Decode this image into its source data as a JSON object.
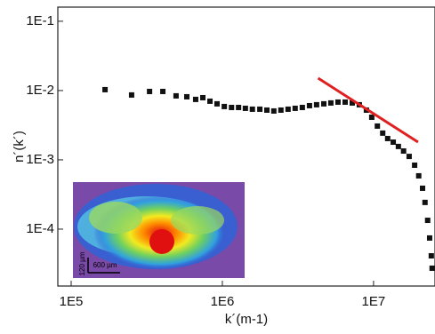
{
  "chart_data": {
    "type": "scatter",
    "x_label": "k´(m-1)",
    "y_label": "n´(k´)",
    "x_log": true,
    "y_log": true,
    "color": "#111111",
    "xlim": [
      81600,
      25500000
    ],
    "ylim": [
      1.51e-05,
      0.16
    ],
    "xticks": [
      {
        "value": 100000,
        "label": "1E5"
      },
      {
        "value": 1000000,
        "label": "1E6"
      },
      {
        "value": 10000000,
        "label": "1E7"
      }
    ],
    "yticks": [
      {
        "value": 0.0001,
        "label": "1E-4"
      },
      {
        "value": 0.001,
        "label": "1E-3"
      },
      {
        "value": 0.01,
        "label": "1E-2"
      },
      {
        "value": 0.1,
        "label": "1E-1"
      }
    ],
    "x": [
      167500,
      251000,
      330000,
      404000,
      494000,
      582000,
      666000,
      743000,
      828000,
      922000,
      1030000,
      1150000,
      1280000,
      1420000,
      1580000,
      1770000,
      1970000,
      2190000,
      2440000,
      2720000,
      3030000,
      3380000,
      3770000,
      4200000,
      4690000,
      5220000,
      5820000,
      6490000,
      7230000,
      8050000,
      8970000,
      9730000,
      10600000,
      11500000,
      12400000,
      13500000,
      14600000,
      15800000,
      17200000,
      18700000,
      19900000,
      21100000,
      21900000,
      22800000,
      23500000,
      24100000,
      24400000
    ],
    "values": [
      0.0103,
      0.00863,
      0.0097,
      0.0097,
      0.00838,
      0.00813,
      0.00745,
      0.00789,
      0.00702,
      0.00643,
      0.00588,
      0.0057,
      0.0057,
      0.00554,
      0.00538,
      0.00538,
      0.00522,
      0.00507,
      0.00522,
      0.00538,
      0.00554,
      0.0057,
      0.00605,
      0.00624,
      0.00643,
      0.00662,
      0.00681,
      0.00681,
      0.00662,
      0.00624,
      0.00522,
      0.00412,
      0.00307,
      0.00243,
      0.00203,
      0.0018,
      0.00156,
      0.00134,
      0.00112,
      0.000837,
      0.000588,
      0.000389,
      0.000243,
      0.000134,
      7.45e-05,
      4.12e-05,
      2.73e-05
    ],
    "fit": {
      "x": [
        4300000,
        19700000
      ],
      "values": [
        0.0151,
        0.0018
      ],
      "color": "#e02020"
    },
    "annotations": [
      "120 µm",
      "600 µm"
    ]
  }
}
